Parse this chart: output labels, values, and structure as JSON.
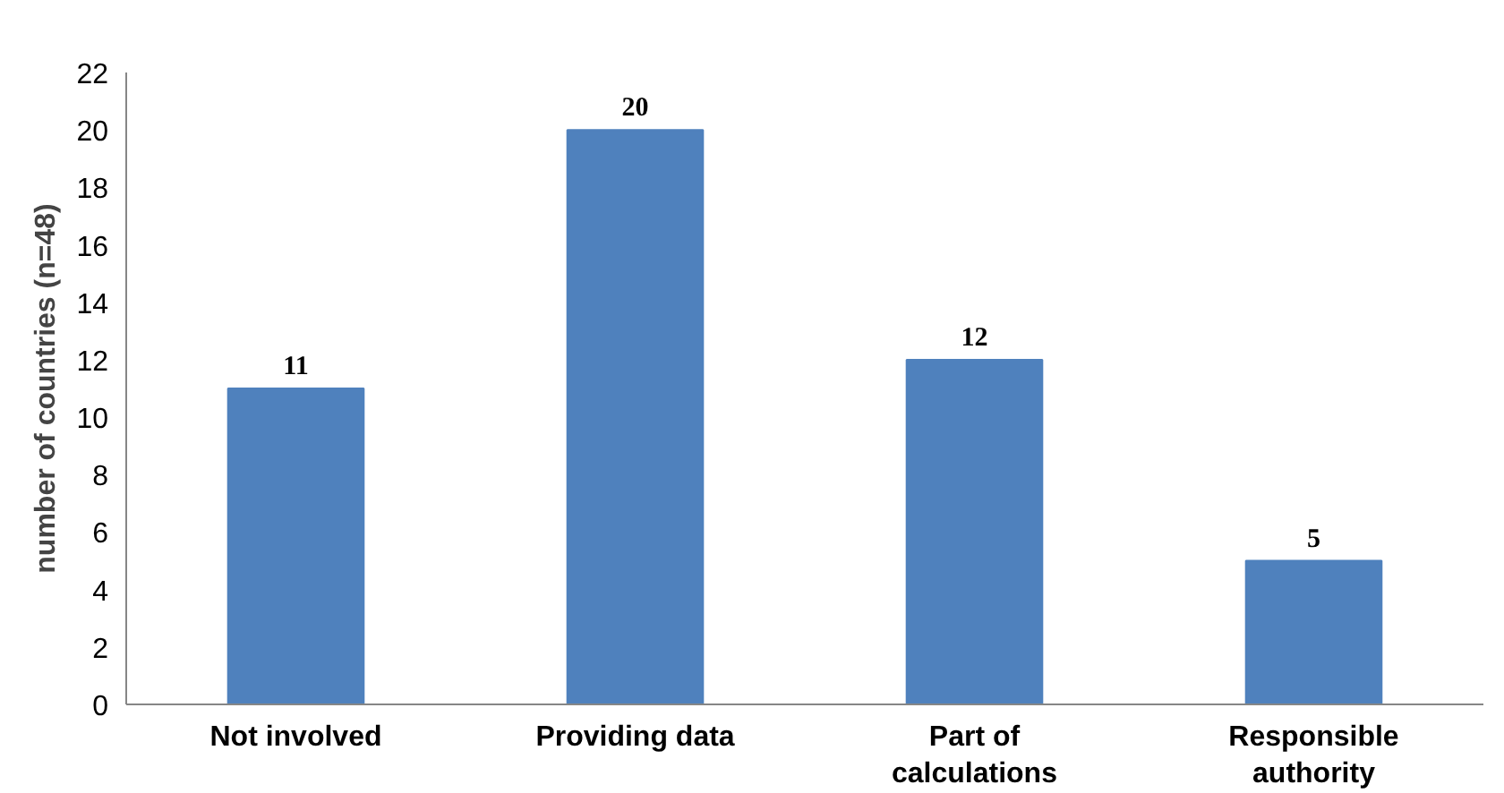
{
  "chart_data": {
    "type": "bar",
    "ylabel": "number of countries (n=48)",
    "categories": [
      "Not involved",
      "Providing data",
      "Part of calculations",
      "Responsible authority"
    ],
    "values": [
      11,
      20,
      12,
      5
    ],
    "color": "#4f81bd",
    "ylim": [
      0,
      22
    ],
    "yticks": [
      0,
      2,
      4,
      6,
      8,
      10,
      12,
      14,
      16,
      18,
      20,
      22
    ],
    "grid": false,
    "data_labels": true
  }
}
